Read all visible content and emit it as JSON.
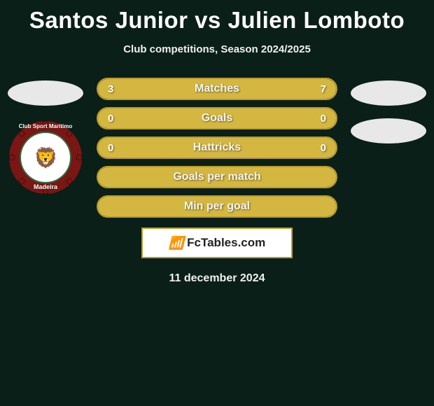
{
  "title": "Santos Junior vs Julien Lomboto",
  "subtitle": "Club competitions, Season 2024/2025",
  "date": "11 december 2024",
  "brand": "FcTables.com",
  "colors": {
    "bg": "#0a1f17",
    "bar_border": "#bb9a2c",
    "bar_bg": "#1c5a3a",
    "bar_fill": "#d4b740",
    "crest_red": "#7a1614",
    "crest_green": "#2e6b3d"
  },
  "left_player": {
    "crest_top": "Club Sport Maritimo",
    "crest_bottom": "Madeira"
  },
  "stats": [
    {
      "label": "Matches",
      "left_val": "3",
      "right_val": "7",
      "left_pct": 30,
      "right_pct": 70
    },
    {
      "label": "Goals",
      "left_val": "0",
      "right_val": "0",
      "left_pct": 0,
      "right_pct": 0,
      "full": true
    },
    {
      "label": "Hattricks",
      "left_val": "0",
      "right_val": "0",
      "left_pct": 0,
      "right_pct": 0,
      "full": true
    },
    {
      "label": "Goals per match",
      "left_val": "",
      "right_val": "",
      "left_pct": 0,
      "right_pct": 0,
      "full": true
    },
    {
      "label": "Min per goal",
      "left_val": "",
      "right_val": "",
      "left_pct": 0,
      "right_pct": 0,
      "full": true
    }
  ]
}
